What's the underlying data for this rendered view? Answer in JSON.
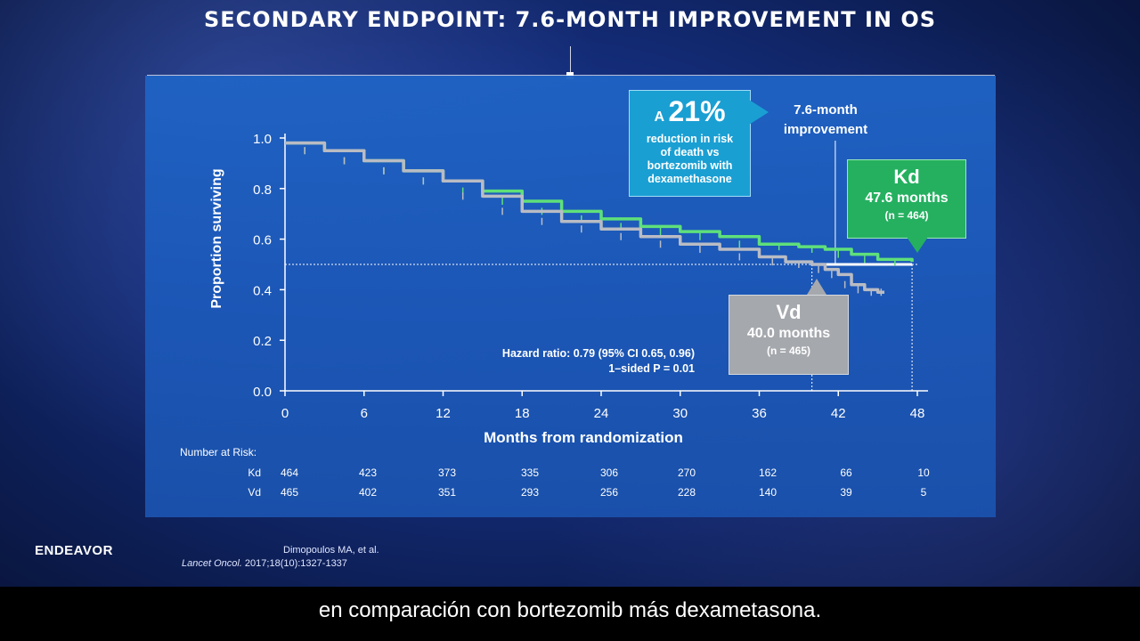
{
  "slide": {
    "title": "SECONDARY ENDPOINT: 7.6-MONTH IMPROVEMENT IN OS",
    "brand": "ENDEAVOR",
    "citation_line1": "Dimopoulos MA, et al.",
    "citation_journal": "Lancet Oncol.",
    "citation_rest": " 2017;18(10):1327-1337",
    "subtitle": "en comparación con bortezomib más dexametasona."
  },
  "callout": {
    "prefix": "A",
    "percent": "21%",
    "line1": "reduction in risk",
    "line2": "of death vs",
    "line3": "bortezomib with",
    "line4": "dexamethasone"
  },
  "improvement": {
    "line1": "7.6-month",
    "line2": "improvement"
  },
  "kd": {
    "name": "Kd",
    "months": "47.6 months",
    "n": "(n = 464)"
  },
  "vd": {
    "name": "Vd",
    "months": "40.0 months",
    "n": "(n = 465)"
  },
  "hazard": {
    "line1": "Hazard ratio: 0.79 (95% CI 0.65, 0.96)",
    "line2": "1–sided P = 0.01"
  },
  "risk_table": {
    "title": "Number at Risk:",
    "rows": [
      {
        "label": "Kd",
        "values": [
          "464",
          "423",
          "373",
          "335",
          "306",
          "270",
          "162",
          "66",
          "10"
        ]
      },
      {
        "label": "Vd",
        "values": [
          "465",
          "402",
          "351",
          "293",
          "256",
          "228",
          "140",
          "39",
          "5"
        ]
      }
    ]
  },
  "colors": {
    "kd": "#5fe07a",
    "vd": "#b9bcc4",
    "axis": "#ffffff"
  },
  "chart_data": {
    "type": "line",
    "title": "",
    "xlabel": "Months from randomization",
    "ylabel": "Proportion surviving",
    "xlim": [
      0,
      48
    ],
    "ylim": [
      0,
      1.0
    ],
    "x_ticks": [
      0,
      6,
      12,
      18,
      24,
      30,
      36,
      42,
      48
    ],
    "y_ticks": [
      0.0,
      0.2,
      0.4,
      0.6,
      0.8,
      1.0
    ],
    "x_tick_labels": [
      "0",
      "6",
      "12",
      "18",
      "24",
      "30",
      "36",
      "42",
      "48"
    ],
    "y_tick_labels": [
      "0.0",
      "0.2",
      "0.4",
      "0.6",
      "0.8",
      "1.0"
    ],
    "median_line_y": 0.5,
    "series": [
      {
        "name": "Kd",
        "x": [
          0,
          3,
          6,
          9,
          12,
          15,
          18,
          21,
          24,
          27,
          30,
          33,
          36,
          39,
          41,
          43,
          45,
          47.6
        ],
        "y": [
          0.98,
          0.95,
          0.91,
          0.87,
          0.83,
          0.79,
          0.75,
          0.71,
          0.68,
          0.65,
          0.63,
          0.61,
          0.58,
          0.57,
          0.56,
          0.54,
          0.52,
          0.51
        ]
      },
      {
        "name": "Vd",
        "x": [
          0,
          3,
          6,
          9,
          12,
          15,
          18,
          21,
          24,
          27,
          30,
          33,
          36,
          38,
          40,
          41,
          42,
          43,
          44,
          45,
          45.5
        ],
        "y": [
          0.98,
          0.95,
          0.91,
          0.87,
          0.83,
          0.77,
          0.71,
          0.67,
          0.64,
          0.61,
          0.58,
          0.56,
          0.53,
          0.51,
          0.5,
          0.48,
          0.46,
          0.42,
          0.4,
          0.39,
          0.39
        ]
      }
    ]
  }
}
